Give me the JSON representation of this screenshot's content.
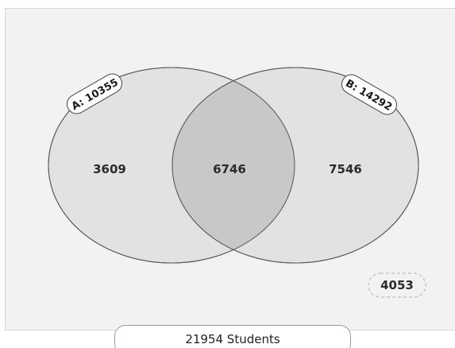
{
  "sets": [
    {
      "name": "A",
      "label": "A: 10355",
      "total": 10355
    },
    {
      "name": "B",
      "label": "B: 14292",
      "total": 14292
    }
  ],
  "regions": {
    "only_a": "3609",
    "intersection": "6746",
    "only_b": "7546",
    "outside": "4053"
  },
  "total": {
    "value": 21954,
    "label": "21954 Students"
  },
  "colors": {
    "panel_background": "#f2f2f2",
    "circle_fill": "#e2e2e2",
    "intersection_fill": "#c8c8c8",
    "circle_stroke": "#555555"
  }
}
